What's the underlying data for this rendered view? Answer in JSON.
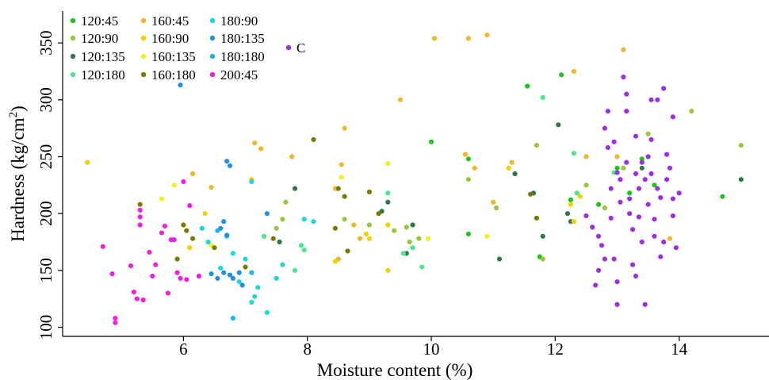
{
  "chart_data": {
    "type": "scatter",
    "title": "",
    "xlabel": "Moisture content (%)",
    "ylabel_main": "Hardness (kg/cm",
    "ylabel_sup": "2",
    "ylabel_end": ")",
    "xlim": [
      4.05,
      15.45
    ],
    "ylim": [
      92,
      378
    ],
    "xticks": [
      6,
      8,
      10,
      12,
      14
    ],
    "xtick_labels": [
      "6",
      "8",
      "10",
      "12",
      "14"
    ],
    "yticks": [
      100,
      150,
      200,
      250,
      300,
      350
    ],
    "ytick_labels": [
      "100",
      "150",
      "200",
      "250",
      "300",
      "350"
    ],
    "grid": false,
    "legend_position": "top-left",
    "series": [
      {
        "name": "120:45",
        "color": "#1fc41f",
        "points": [
          [
            10.0,
            263
          ],
          [
            10.6,
            182
          ],
          [
            10.6,
            248
          ],
          [
            11.55,
            312
          ],
          [
            12.1,
            322
          ],
          [
            11.75,
            162
          ],
          [
            12.25,
            212
          ],
          [
            12.7,
            208
          ],
          [
            13.0,
            240
          ],
          [
            13.2,
            218
          ],
          [
            13.4,
            248
          ],
          [
            14.7,
            215
          ],
          [
            13.6,
            225
          ]
        ]
      },
      {
        "name": "120:90",
        "color": "#96c83c",
        "points": [
          [
            7.5,
            187
          ],
          [
            7.6,
            195
          ],
          [
            7.65,
            210
          ],
          [
            8.6,
            195
          ],
          [
            9.0,
            190
          ],
          [
            9.4,
            185
          ],
          [
            9.6,
            188
          ],
          [
            9.65,
            175
          ],
          [
            9.7,
            190
          ],
          [
            9.8,
            178
          ],
          [
            10.6,
            230
          ],
          [
            11.05,
            205
          ],
          [
            11.7,
            260
          ],
          [
            11.8,
            160
          ],
          [
            12.5,
            225
          ],
          [
            13.1,
            240
          ],
          [
            13.5,
            270
          ],
          [
            14.2,
            290
          ],
          [
            15.0,
            260
          ],
          [
            12.8,
            205
          ]
        ]
      },
      {
        "name": "120:135",
        "color": "#2f7a44",
        "points": [
          [
            7.55,
            175
          ],
          [
            7.8,
            222
          ],
          [
            9.2,
            202
          ],
          [
            9.3,
            210
          ],
          [
            9.6,
            165
          ],
          [
            9.7,
            190
          ],
          [
            11.1,
            160
          ],
          [
            11.35,
            235
          ],
          [
            11.65,
            218
          ],
          [
            12.05,
            278
          ],
          [
            12.2,
            200
          ],
          [
            12.25,
            193
          ],
          [
            11.8,
            180
          ],
          [
            15.0,
            230
          ],
          [
            13.4,
            240
          ]
        ]
      },
      {
        "name": "120:180",
        "color": "#4de68e",
        "points": [
          [
            7.3,
            180
          ],
          [
            7.8,
            150
          ],
          [
            7.9,
            172
          ],
          [
            7.95,
            168
          ],
          [
            9.3,
            218
          ],
          [
            9.55,
            165
          ],
          [
            9.7,
            170
          ],
          [
            9.85,
            153
          ],
          [
            11.8,
            302
          ],
          [
            12.3,
            253
          ],
          [
            12.95,
            236
          ],
          [
            12.35,
            218
          ]
        ]
      },
      {
        "name": "160:45",
        "color": "#f0b829",
        "points": [
          [
            6.15,
            235
          ],
          [
            6.45,
            223
          ],
          [
            7.15,
            262
          ],
          [
            7.25,
            257
          ],
          [
            7.75,
            250
          ],
          [
            8.45,
            222
          ],
          [
            8.55,
            243
          ],
          [
            8.6,
            275
          ],
          [
            8.5,
            160
          ],
          [
            8.75,
            190
          ],
          [
            8.85,
            178
          ],
          [
            9.5,
            300
          ],
          [
            10.05,
            354
          ],
          [
            10.6,
            354
          ],
          [
            10.9,
            357
          ],
          [
            10.55,
            252
          ],
          [
            10.7,
            240
          ],
          [
            11.0,
            210
          ],
          [
            11.3,
            245
          ],
          [
            12.3,
            325
          ],
          [
            12.5,
            250
          ],
          [
            13.1,
            344
          ],
          [
            13.0,
            250
          ],
          [
            13.85,
            178
          ]
        ]
      },
      {
        "name": "160:90",
        "color": "#f0d000",
        "points": [
          [
            4.45,
            245
          ],
          [
            6.1,
            170
          ],
          [
            6.35,
            200
          ],
          [
            7.1,
            230
          ],
          [
            8.45,
            158
          ],
          [
            8.95,
            182
          ],
          [
            9.0,
            178
          ],
          [
            9.3,
            150
          ],
          [
            9.3,
            190
          ],
          [
            11.25,
            240
          ],
          [
            12.3,
            193
          ],
          [
            12.25,
            208
          ],
          [
            12.4,
            215
          ]
        ]
      },
      {
        "name": "160:135",
        "color": "#f2f020",
        "points": [
          [
            5.65,
            213
          ],
          [
            5.85,
            225
          ],
          [
            6.45,
            172
          ],
          [
            8.55,
            232
          ],
          [
            9.3,
            244
          ],
          [
            9.95,
            178
          ],
          [
            10.9,
            180
          ]
        ]
      },
      {
        "name": "160:180",
        "color": "#7a7a00",
        "points": [
          [
            5.3,
            208
          ],
          [
            5.9,
            160
          ],
          [
            6.0,
            190
          ],
          [
            6.05,
            185
          ],
          [
            6.15,
            178
          ],
          [
            6.5,
            170
          ],
          [
            7.0,
            153
          ],
          [
            7.45,
            178
          ],
          [
            8.1,
            265
          ],
          [
            8.45,
            187
          ],
          [
            8.5,
            222
          ],
          [
            8.6,
            215
          ],
          [
            8.65,
            167
          ],
          [
            9.0,
            219
          ],
          [
            9.15,
            200
          ],
          [
            11.6,
            217
          ],
          [
            11.7,
            196
          ]
        ]
      },
      {
        "name": "180:90",
        "color": "#1ed8d8",
        "points": [
          [
            6.3,
            187
          ],
          [
            6.4,
            175
          ],
          [
            6.6,
            152
          ],
          [
            6.7,
            180
          ],
          [
            6.8,
            165
          ],
          [
            6.9,
            140
          ],
          [
            7.0,
            160
          ],
          [
            7.1,
            122
          ],
          [
            7.15,
            127
          ],
          [
            7.2,
            135
          ],
          [
            7.35,
            113
          ],
          [
            7.5,
            143
          ],
          [
            7.6,
            155
          ],
          [
            7.95,
            195
          ],
          [
            8.1,
            193
          ],
          [
            7.1,
            228
          ]
        ]
      },
      {
        "name": "180:135",
        "color": "#2390e0",
        "points": [
          [
            5.95,
            313
          ],
          [
            6.45,
            147
          ],
          [
            6.55,
            143
          ],
          [
            6.6,
            187
          ],
          [
            6.65,
            148
          ],
          [
            6.7,
            181
          ],
          [
            6.75,
            146
          ],
          [
            6.8,
            143
          ],
          [
            6.9,
            148
          ],
          [
            6.95,
            137
          ],
          [
            6.65,
            193
          ],
          [
            6.7,
            246
          ],
          [
            6.75,
            242
          ],
          [
            7.35,
            200
          ]
        ]
      },
      {
        "name": "180:180",
        "color": "#1bb5e8",
        "points": [
          [
            6.55,
            185
          ],
          [
            6.8,
            108
          ],
          [
            7.1,
            148
          ]
        ]
      },
      {
        "name": "200:45",
        "color": "#f020e0",
        "points": [
          [
            4.7,
            171
          ],
          [
            4.85,
            147
          ],
          [
            4.9,
            108
          ],
          [
            4.9,
            104
          ],
          [
            5.15,
            154
          ],
          [
            5.2,
            131
          ],
          [
            5.25,
            125
          ],
          [
            5.3,
            203
          ],
          [
            5.3,
            197
          ],
          [
            5.35,
            124
          ],
          [
            5.45,
            166
          ],
          [
            5.5,
            145
          ],
          [
            5.55,
            155
          ],
          [
            5.65,
            183
          ],
          [
            5.7,
            189
          ],
          [
            5.75,
            130
          ],
          [
            5.8,
            177
          ],
          [
            5.85,
            177
          ],
          [
            5.9,
            148
          ],
          [
            5.95,
            143
          ],
          [
            6.0,
            228
          ],
          [
            6.05,
            142
          ],
          [
            6.1,
            207
          ],
          [
            6.25,
            145
          ],
          [
            5.3,
            190
          ]
        ]
      },
      {
        "name": "C",
        "color": "#9b30e0",
        "points": [
          [
            12.65,
            137
          ],
          [
            12.7,
            150
          ],
          [
            12.7,
            180
          ],
          [
            12.75,
            172
          ],
          [
            12.8,
            275
          ],
          [
            12.85,
            290
          ],
          [
            12.85,
            258
          ],
          [
            12.9,
            222
          ],
          [
            12.9,
            196
          ],
          [
            12.95,
            160
          ],
          [
            12.95,
            263
          ],
          [
            13.0,
            120
          ],
          [
            13.0,
            236
          ],
          [
            13.05,
            210
          ],
          [
            13.05,
            230
          ],
          [
            13.1,
            320
          ],
          [
            13.15,
            305
          ],
          [
            13.15,
            290
          ],
          [
            13.15,
            245
          ],
          [
            13.2,
            200
          ],
          [
            13.2,
            213
          ],
          [
            13.25,
            186
          ],
          [
            13.25,
            155
          ],
          [
            13.3,
            235
          ],
          [
            13.3,
            268
          ],
          [
            13.35,
            197
          ],
          [
            13.35,
            222
          ],
          [
            13.4,
            245
          ],
          [
            13.4,
            175
          ],
          [
            13.45,
            230
          ],
          [
            13.45,
            120
          ],
          [
            13.5,
            208
          ],
          [
            13.5,
            250
          ],
          [
            13.55,
            235
          ],
          [
            13.55,
            265
          ],
          [
            13.6,
            180
          ],
          [
            13.6,
            195
          ],
          [
            13.65,
            300
          ],
          [
            13.65,
            222
          ],
          [
            13.7,
            162
          ],
          [
            13.7,
            214
          ],
          [
            13.75,
            310
          ],
          [
            13.75,
            175
          ],
          [
            13.8,
            230
          ],
          [
            13.85,
            240
          ],
          [
            13.9,
            213
          ],
          [
            13.9,
            285
          ],
          [
            13.95,
            170
          ],
          [
            14.0,
            218
          ],
          [
            13.0,
            140
          ],
          [
            12.8,
            160
          ],
          [
            13.3,
            145
          ],
          [
            13.55,
            300
          ],
          [
            12.5,
            198
          ],
          [
            12.6,
            188
          ],
          [
            13.9,
            198
          ],
          [
            13.8,
            252
          ]
        ]
      }
    ]
  }
}
